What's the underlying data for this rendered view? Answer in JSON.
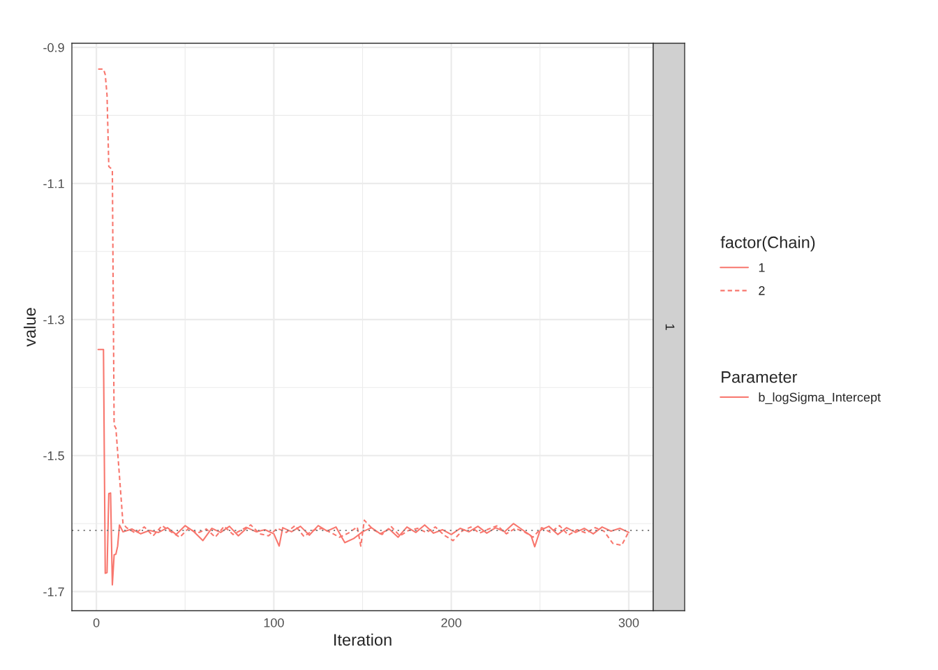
{
  "chart_data": {
    "type": "line",
    "xlabel": "Iteration",
    "ylabel": "value",
    "legend_title": "factor(Chain)",
    "legend": "right",
    "grid": true,
    "xlim": [
      -13.8,
      313.8
    ],
    "xticks": [
      0,
      100,
      200,
      300
    ],
    "ylim": [
      -1.728,
      -0.894
    ],
    "yticks": [
      -0.9,
      -1.1,
      -1.3,
      -1.5,
      -1.7
    ],
    "ref_lines": [
      {
        "axis": "y",
        "value": -1.61,
        "label": null,
        "color": "#7f7f7f",
        "line_style": "dotted"
      }
    ],
    "annotations": [
      "1",
      "Parameter",
      "b_logSigma_Intercept"
    ],
    "series": [
      {
        "name": "1",
        "color": "#f8766d",
        "line_style": "solid",
        "x": [
          1,
          4,
          5,
          6,
          7,
          8,
          9,
          10,
          11,
          12,
          13,
          15,
          20,
          25,
          30,
          35,
          40,
          45,
          50,
          55,
          60,
          65,
          70,
          75,
          80,
          85,
          90,
          95,
          100,
          103,
          105,
          110,
          115,
          120,
          125,
          130,
          135,
          140,
          145,
          150,
          155,
          160,
          165,
          170,
          175,
          180,
          185,
          190,
          195,
          200,
          205,
          210,
          215,
          220,
          225,
          230,
          235,
          240,
          245,
          247,
          250,
          255,
          260,
          265,
          270,
          275,
          280,
          285,
          290,
          295,
          300
        ],
        "values": [
          -1.344,
          -1.344,
          -1.673,
          -1.672,
          -1.556,
          -1.555,
          -1.69,
          -1.646,
          -1.645,
          -1.633,
          -1.602,
          -1.612,
          -1.608,
          -1.615,
          -1.61,
          -1.613,
          -1.606,
          -1.616,
          -1.603,
          -1.612,
          -1.625,
          -1.607,
          -1.613,
          -1.604,
          -1.618,
          -1.606,
          -1.612,
          -1.609,
          -1.615,
          -1.633,
          -1.606,
          -1.612,
          -1.604,
          -1.617,
          -1.603,
          -1.611,
          -1.605,
          -1.628,
          -1.622,
          -1.612,
          -1.606,
          -1.615,
          -1.608,
          -1.62,
          -1.605,
          -1.613,
          -1.602,
          -1.614,
          -1.609,
          -1.616,
          -1.607,
          -1.612,
          -1.604,
          -1.614,
          -1.606,
          -1.612,
          -1.6,
          -1.609,
          -1.618,
          -1.634,
          -1.61,
          -1.604,
          -1.616,
          -1.606,
          -1.613,
          -1.607,
          -1.615,
          -1.605,
          -1.611,
          -1.607,
          -1.613
        ]
      },
      {
        "name": "2",
        "color": "#f8766d",
        "line_style": "dashed",
        "x": [
          1,
          4,
          5,
          6,
          7,
          9,
          10,
          11,
          13,
          15,
          17,
          22,
          27,
          32,
          37,
          42,
          47,
          52,
          57,
          62,
          67,
          72,
          77,
          82,
          87,
          92,
          97,
          102,
          107,
          112,
          117,
          122,
          127,
          132,
          137,
          142,
          147,
          149,
          151,
          156,
          161,
          166,
          171,
          176,
          181,
          186,
          191,
          196,
          201,
          206,
          211,
          216,
          221,
          226,
          231,
          236,
          241,
          246,
          251,
          256,
          261,
          266,
          271,
          276,
          281,
          286,
          291,
          296,
          300
        ],
        "values": [
          -0.932,
          -0.932,
          -0.94,
          -0.97,
          -1.075,
          -1.08,
          -1.455,
          -1.46,
          -1.53,
          -1.6,
          -1.606,
          -1.614,
          -1.605,
          -1.618,
          -1.603,
          -1.612,
          -1.62,
          -1.607,
          -1.614,
          -1.608,
          -1.62,
          -1.604,
          -1.616,
          -1.609,
          -1.602,
          -1.615,
          -1.618,
          -1.607,
          -1.613,
          -1.603,
          -1.619,
          -1.61,
          -1.607,
          -1.613,
          -1.62,
          -1.614,
          -1.605,
          -1.633,
          -1.595,
          -1.609,
          -1.616,
          -1.604,
          -1.618,
          -1.61,
          -1.607,
          -1.613,
          -1.605,
          -1.617,
          -1.625,
          -1.611,
          -1.605,
          -1.614,
          -1.608,
          -1.603,
          -1.615,
          -1.607,
          -1.612,
          -1.62,
          -1.606,
          -1.613,
          -1.603,
          -1.617,
          -1.609,
          -1.614,
          -1.606,
          -1.611,
          -1.629,
          -1.632,
          -1.612
        ]
      }
    ]
  }
}
